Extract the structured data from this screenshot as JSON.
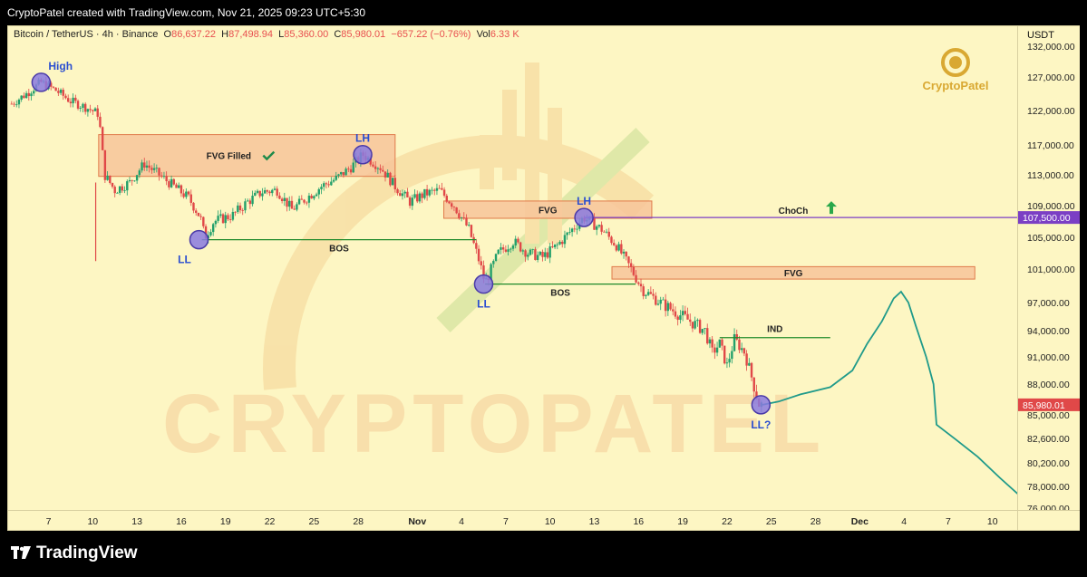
{
  "header": {
    "credit": "CryptoPatel created with TradingView.com, Nov 21, 2025 09:23 UTC+5:30"
  },
  "legend": {
    "symbol": "Bitcoin / TetherUS · 4h · Binance",
    "open_label": "O",
    "open": "86,637.22",
    "high_label": "H",
    "high": "87,498.94",
    "low_label": "L",
    "low": "85,360.00",
    "close_label": "C",
    "close": "85,980.01",
    "change": "−657.22 (−0.76%)",
    "vol_label": "Vol",
    "vol": "6.33 K"
  },
  "axis_currency": "USDT",
  "footer": {
    "brand": "TradingView"
  },
  "watermark": {
    "big": "CRYPTOPATEL",
    "logo_text": "CryptoPatel"
  },
  "colors": {
    "bg": "#fdf6c3",
    "up": "#22a06b",
    "down": "#e04848",
    "fvg": "#f7c49a",
    "bos": "#1f8a2a",
    "choch": "#7b3fc4",
    "projection": "#1f9a8a",
    "marker": "#8a7ae0"
  },
  "chart_data": {
    "type": "candlestick",
    "timeframe": "4h",
    "ylim": [
      75000,
      133000
    ],
    "yticks": [
      76000,
      78000,
      80200,
      82600,
      85000,
      88000,
      91000,
      94000,
      97000,
      101000,
      105000,
      109000,
      113000,
      117000,
      122000,
      127000,
      132000
    ],
    "ytick_labels": [
      "76,000.00",
      "78,000.00",
      "80,200.00",
      "82,600.00",
      "85,000.00",
      "88,000.00",
      "91,000.00",
      "94,000.00",
      "97,000.00",
      "101,000.00",
      "105,000.00",
      "109,000.00",
      "113,000.00",
      "117,000.00",
      "122,000.00",
      "127,000.00",
      "132,000.00"
    ],
    "xticks": [
      {
        "d": 7,
        "label": "7"
      },
      {
        "d": 10,
        "label": "10"
      },
      {
        "d": 13,
        "label": "13"
      },
      {
        "d": 16,
        "label": "16"
      },
      {
        "d": 19,
        "label": "19"
      },
      {
        "d": 22,
        "label": "22"
      },
      {
        "d": 25,
        "label": "25"
      },
      {
        "d": 28,
        "label": "28"
      },
      {
        "d": 32,
        "label": "Nov",
        "bold": true
      },
      {
        "d": 35,
        "label": "4"
      },
      {
        "d": 38,
        "label": "7"
      },
      {
        "d": 41,
        "label": "10"
      },
      {
        "d": 44,
        "label": "13"
      },
      {
        "d": 47,
        "label": "16"
      },
      {
        "d": 50,
        "label": "19"
      },
      {
        "d": 53,
        "label": "22"
      },
      {
        "d": 56,
        "label": "25"
      },
      {
        "d": 59,
        "label": "28"
      },
      {
        "d": 62,
        "label": "Dec",
        "bold": true
      },
      {
        "d": 65,
        "label": "4"
      },
      {
        "d": 68,
        "label": "7"
      },
      {
        "d": 71,
        "label": "10"
      }
    ],
    "price_path": [
      [
        4.5,
        123000
      ],
      [
        5.5,
        124500
      ],
      [
        6.5,
        126200
      ],
      [
        7.5,
        125000
      ],
      [
        8.5,
        123400
      ],
      [
        9.5,
        122500
      ],
      [
        10.4,
        121500
      ],
      [
        10.8,
        113000
      ],
      [
        11.5,
        111000
      ],
      [
        12.5,
        112000
      ],
      [
        13.5,
        114500
      ],
      [
        14.5,
        113000
      ],
      [
        15.5,
        111500
      ],
      [
        16.5,
        110000
      ],
      [
        17.3,
        107500
      ],
      [
        17.6,
        105000
      ],
      [
        18.2,
        107000
      ],
      [
        19.5,
        107800
      ],
      [
        20.5,
        109500
      ],
      [
        21.5,
        110800
      ],
      [
        22.5,
        111000
      ],
      [
        23.5,
        108500
      ],
      [
        24.5,
        110000
      ],
      [
        25.5,
        111500
      ],
      [
        26.5,
        112500
      ],
      [
        27.5,
        114000
      ],
      [
        28.3,
        115700
      ],
      [
        29.5,
        114000
      ],
      [
        30.5,
        111500
      ],
      [
        31.5,
        109500
      ],
      [
        32.5,
        110500
      ],
      [
        33.5,
        111000
      ],
      [
        34.5,
        109000
      ],
      [
        35.5,
        106000
      ],
      [
        36.2,
        102000
      ],
      [
        36.6,
        99300
      ],
      [
        37.5,
        103000
      ],
      [
        38.5,
        104500
      ],
      [
        39.5,
        103000
      ],
      [
        40.5,
        102500
      ],
      [
        41.5,
        104000
      ],
      [
        42.5,
        106000
      ],
      [
        43.3,
        107500
      ],
      [
        44.5,
        106000
      ],
      [
        45.5,
        104000
      ],
      [
        46.5,
        101000
      ],
      [
        47.3,
        98500
      ],
      [
        48.5,
        97000
      ],
      [
        49.5,
        96000
      ],
      [
        50.5,
        95000
      ],
      [
        51.5,
        94000
      ],
      [
        52.0,
        91500
      ],
      [
        52.5,
        92500
      ],
      [
        53.0,
        90000
      ],
      [
        53.5,
        93000
      ],
      [
        54.2,
        91500
      ],
      [
        54.8,
        88000
      ],
      [
        55.2,
        85900
      ],
      [
        55.4,
        85980
      ]
    ],
    "wick_spike": {
      "d": 10.2,
      "low": 102000
    },
    "projection": [
      [
        55.4,
        85980
      ],
      [
        56.5,
        86300
      ],
      [
        58,
        87000
      ],
      [
        60,
        87700
      ],
      [
        61.5,
        89500
      ],
      [
        62.5,
        92500
      ],
      [
        63.5,
        95000
      ],
      [
        64.3,
        97500
      ],
      [
        64.8,
        98300
      ],
      [
        65.3,
        97000
      ],
      [
        65.8,
        94500
      ],
      [
        66.5,
        91000
      ],
      [
        67,
        88000
      ],
      [
        67.2,
        84000
      ],
      [
        68.5,
        82500
      ],
      [
        70,
        80800
      ],
      [
        71.5,
        78800
      ],
      [
        72.8,
        77200
      ]
    ],
    "zones": [
      {
        "label": "FVG Filled",
        "d0": 10.4,
        "d1": 30.5,
        "top": 118500,
        "bottom": 112800,
        "check": true
      },
      {
        "label": "FVG",
        "d0": 33.8,
        "d1": 47.9,
        "top": 109600,
        "bottom": 107400
      },
      {
        "label": "FVG",
        "d0": 45.2,
        "d1": 69.8,
        "top": 101300,
        "bottom": 99800
      }
    ],
    "levels": [
      {
        "label": "BOS",
        "d0": 17.4,
        "d1": 36.0,
        "y": 104700,
        "color": "#1f8a2a"
      },
      {
        "label": "BOS",
        "d0": 36.6,
        "d1": 46.8,
        "y": 99200,
        "color": "#1f8a2a"
      },
      {
        "label": "IND",
        "d0": 52.5,
        "d1": 60.0,
        "y": 93200,
        "color": "#1f8a2a"
      },
      {
        "label": "ChoCh",
        "d0": 43.3,
        "d1": 76.0,
        "y": 107500,
        "color": "#7b3fc4"
      }
    ],
    "markers": [
      {
        "label": "High",
        "d": 6.5,
        "y": 126200,
        "label_pos": "above-right"
      },
      {
        "label": "LH",
        "d": 28.3,
        "y": 115700,
        "label_pos": "above"
      },
      {
        "label": "LL",
        "d": 17.2,
        "y": 104700,
        "label_pos": "below-left"
      },
      {
        "label": "LL",
        "d": 36.5,
        "y": 99200,
        "label_pos": "below"
      },
      {
        "label": "LH",
        "d": 43.3,
        "y": 107500,
        "label_pos": "above"
      },
      {
        "label": "LL?",
        "d": 55.3,
        "y": 85980,
        "label_pos": "below"
      }
    ],
    "price_tags": [
      {
        "label": "107,500.00",
        "y": 107500,
        "color": "#7b3fc4"
      },
      {
        "label": "85,980.01",
        "y": 85980,
        "color": "#e04848"
      }
    ]
  }
}
